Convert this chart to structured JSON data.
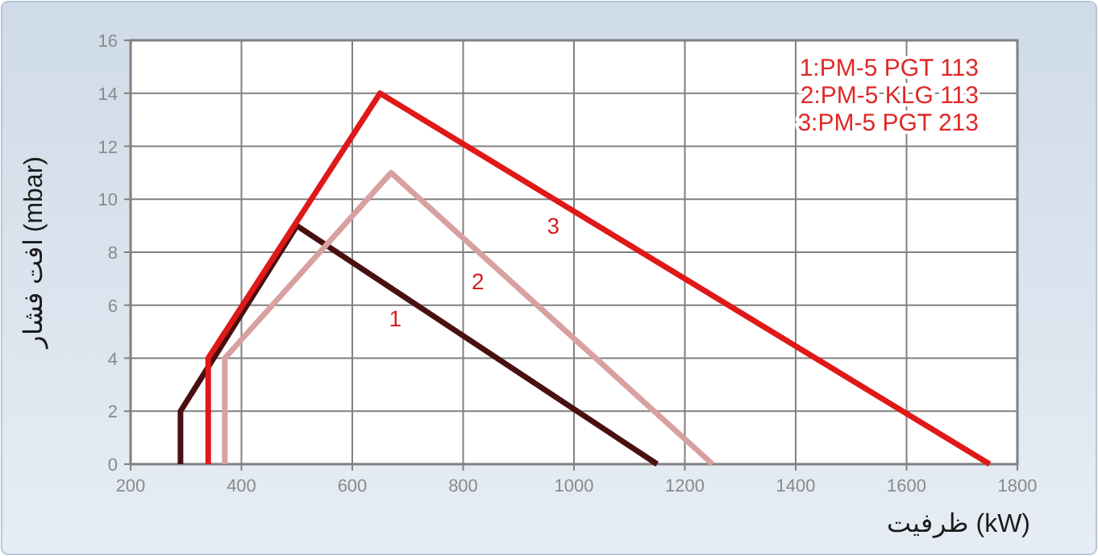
{
  "chart_data": {
    "type": "line",
    "xlabel": "ظرفیت (kW)",
    "ylabel": "افت فشار (mbar)",
    "xlim": [
      200,
      1800
    ],
    "xticks": [
      200,
      400,
      600,
      800,
      1000,
      1200,
      1400,
      1600,
      1800
    ],
    "ylim": [
      0,
      16
    ],
    "yticks": [
      0,
      2,
      4,
      6,
      8,
      10,
      12,
      14,
      16
    ],
    "grid": true,
    "line_style": "solid",
    "marker": "none",
    "series": [
      {
        "name": "1",
        "color": "#4a1010",
        "x": [
          290,
          290,
          500,
          1150
        ],
        "values": [
          0,
          2,
          9,
          0
        ]
      },
      {
        "name": "2",
        "color": "#d8a0a0",
        "x": [
          370,
          370,
          670,
          1250
        ],
        "values": [
          0,
          4,
          11,
          0
        ]
      },
      {
        "name": "3",
        "color": "#e01818",
        "x": [
          340,
          340,
          650,
          1750
        ],
        "values": [
          0,
          4,
          14,
          0
        ]
      }
    ],
    "annotations": [
      "1:PM-5 PGT 113",
      "2:PM-5 KLG 113",
      "3:PM-5 PGT 213"
    ]
  }
}
